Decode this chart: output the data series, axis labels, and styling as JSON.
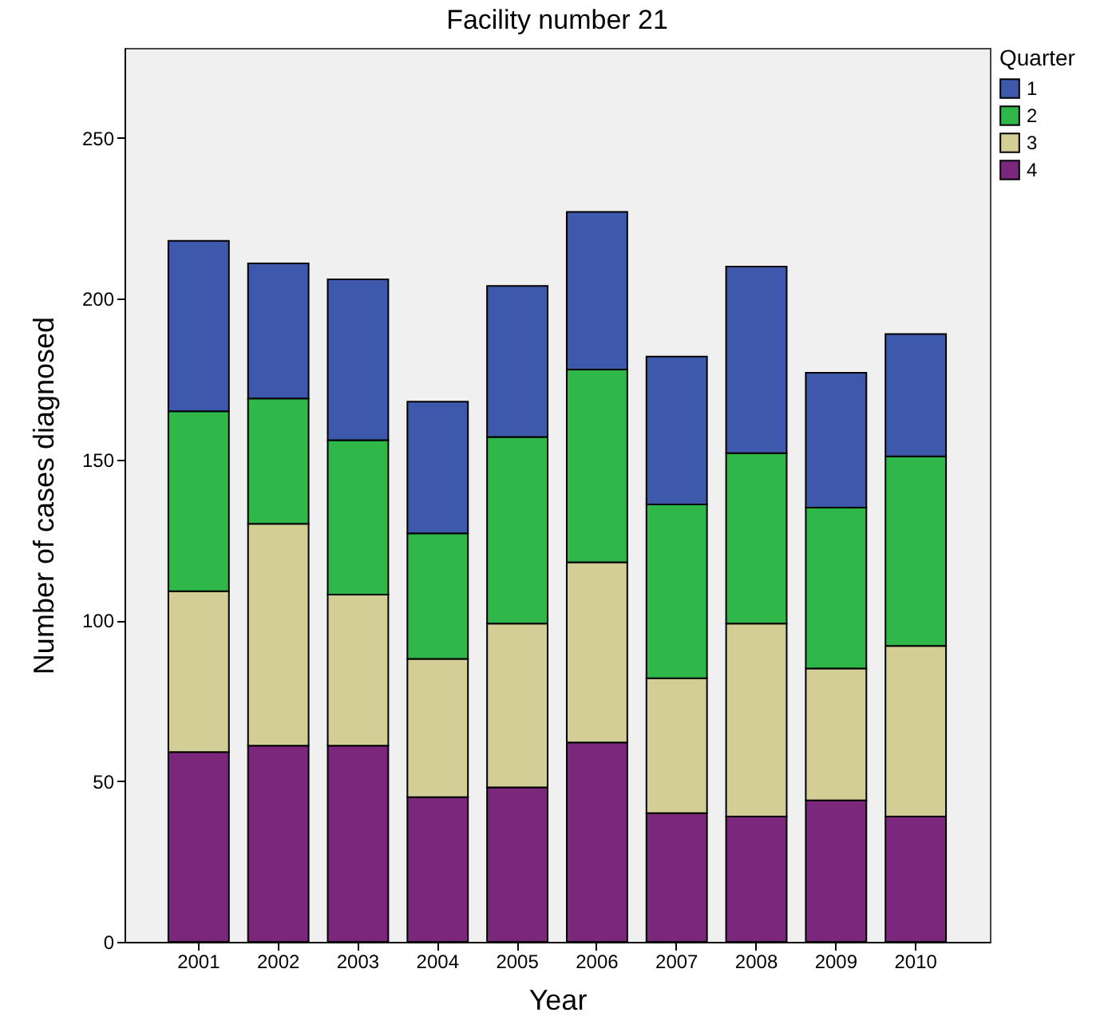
{
  "chart_data": {
    "type": "bar",
    "title": "Facility number 21",
    "xlabel": "Year",
    "ylabel": "Number of cases diagnosed",
    "legend_title": "Quarter",
    "categories": [
      "2001",
      "2002",
      "2003",
      "2004",
      "2005",
      "2006",
      "2007",
      "2008",
      "2009",
      "2010"
    ],
    "stacked": true,
    "series": [
      {
        "name": "4",
        "color": "#7b287c",
        "values": [
          59,
          61,
          61,
          45,
          48,
          62,
          40,
          39,
          44,
          39
        ]
      },
      {
        "name": "3",
        "color": "#d3cd96",
        "values": [
          50,
          69,
          47,
          43,
          51,
          56,
          42,
          60,
          41,
          53
        ]
      },
      {
        "name": "2",
        "color": "#30b74a",
        "values": [
          56,
          39,
          48,
          39,
          58,
          60,
          54,
          53,
          50,
          59
        ]
      },
      {
        "name": "1",
        "color": "#3e58ac",
        "values": [
          53,
          42,
          50,
          41,
          47,
          49,
          46,
          58,
          42,
          38
        ]
      }
    ],
    "ylim": [
      0,
      278
    ],
    "yticks": [
      0,
      50,
      100,
      150,
      200,
      250
    ],
    "grid": false,
    "legend": "top right"
  }
}
